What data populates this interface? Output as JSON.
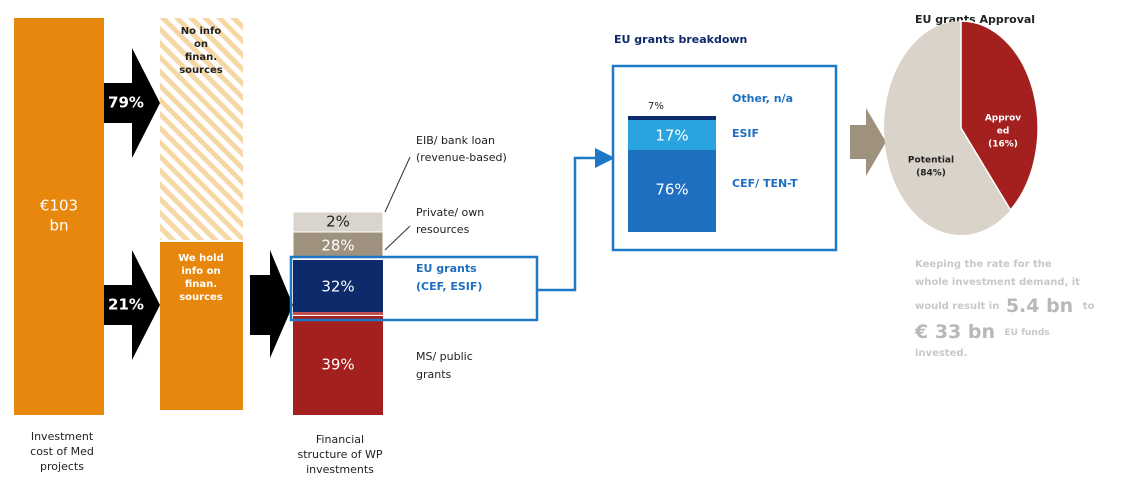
{
  "investment": {
    "amount": [
      "€103",
      "bn"
    ],
    "caption": [
      "Investment",
      "cost of Med",
      "projects"
    ]
  },
  "split": {
    "no_info_share": "79%",
    "info_share": "21%",
    "no_info_label": [
      "No info",
      "on",
      "finan.",
      "sources"
    ],
    "info_label": [
      "We hold",
      "info on",
      "finan.",
      "sources"
    ]
  },
  "financial_structure": {
    "caption": [
      "Financial",
      "structure of WP",
      "investments"
    ],
    "segments": [
      {
        "share": "2%",
        "label": [
          "EIB/ bank loan",
          "(revenue-based)"
        ]
      },
      {
        "share": "28%",
        "label": [
          "Private/ own",
          "resources"
        ]
      },
      {
        "share": "32%",
        "label": [
          "EU grants",
          "(CEF, ESIF)"
        ]
      },
      {
        "share": "39%",
        "label": [
          "MS/ public",
          "grants"
        ]
      }
    ]
  },
  "eu_grants_breakdown": {
    "title": "EU grants breakdown",
    "segments": [
      {
        "share": "7%",
        "label": "Other, n/a"
      },
      {
        "share": "17%",
        "label": "ESIF"
      },
      {
        "share": "76%",
        "label": "CEF/ TEN-T"
      }
    ]
  },
  "approval": {
    "title": "EU grants Approval",
    "approved": [
      "Approv",
      "ed",
      "(16%)"
    ],
    "potential": [
      "Potential",
      "(84%)"
    ],
    "note": {
      "lines": [
        "Keeping the rate for the",
        "whole investment demand, it",
        "would result in",
        "invested."
      ],
      "low": "5.4 bn",
      "to": "to",
      "high": "€ 33 bn",
      "tail": "EU funds"
    }
  }
}
